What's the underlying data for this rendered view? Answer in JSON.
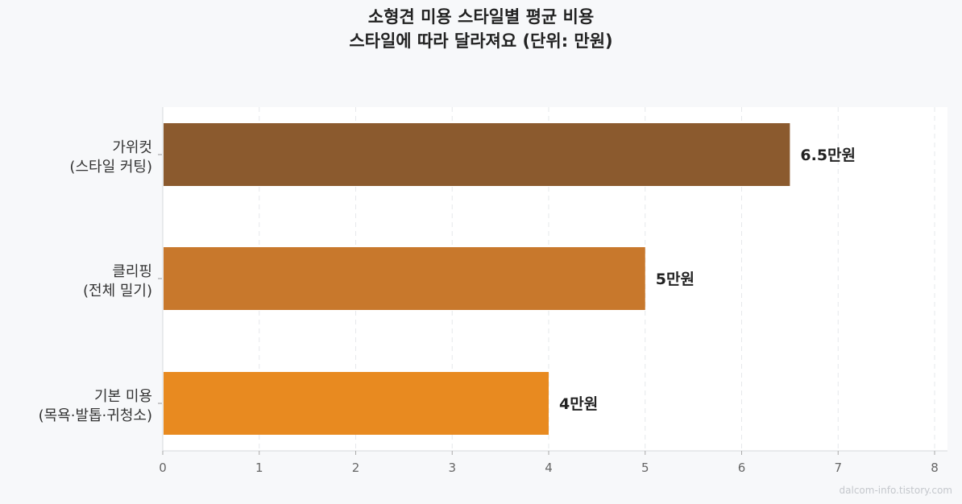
{
  "chart_data": {
    "type": "bar",
    "orientation": "horizontal",
    "title": "소형견 미용 스타일별 평균 비용",
    "subtitle": "스타일에 따라 달라져요 (단위: 만원)",
    "categories": [
      [
        "가위컷",
        "(스타일 커팅)"
      ],
      [
        "클리핑",
        "(전체 밀기)"
      ],
      [
        "기본 미용",
        "(목욕·발톱·귀청소)"
      ]
    ],
    "values": [
      6.5,
      5,
      4
    ],
    "data_labels": [
      "6.5만원",
      "5만원",
      "4만원"
    ],
    "colors": [
      "#8b5a2e",
      "#c8782c",
      "#e88a20"
    ],
    "xlim": [
      0,
      8
    ],
    "xticks": [
      "0",
      "1",
      "2",
      "3",
      "4",
      "5",
      "6",
      "7",
      "8"
    ],
    "grid": true,
    "grid_style": "dashed vertical"
  },
  "watermark": "dalcom-info.tistory.com"
}
